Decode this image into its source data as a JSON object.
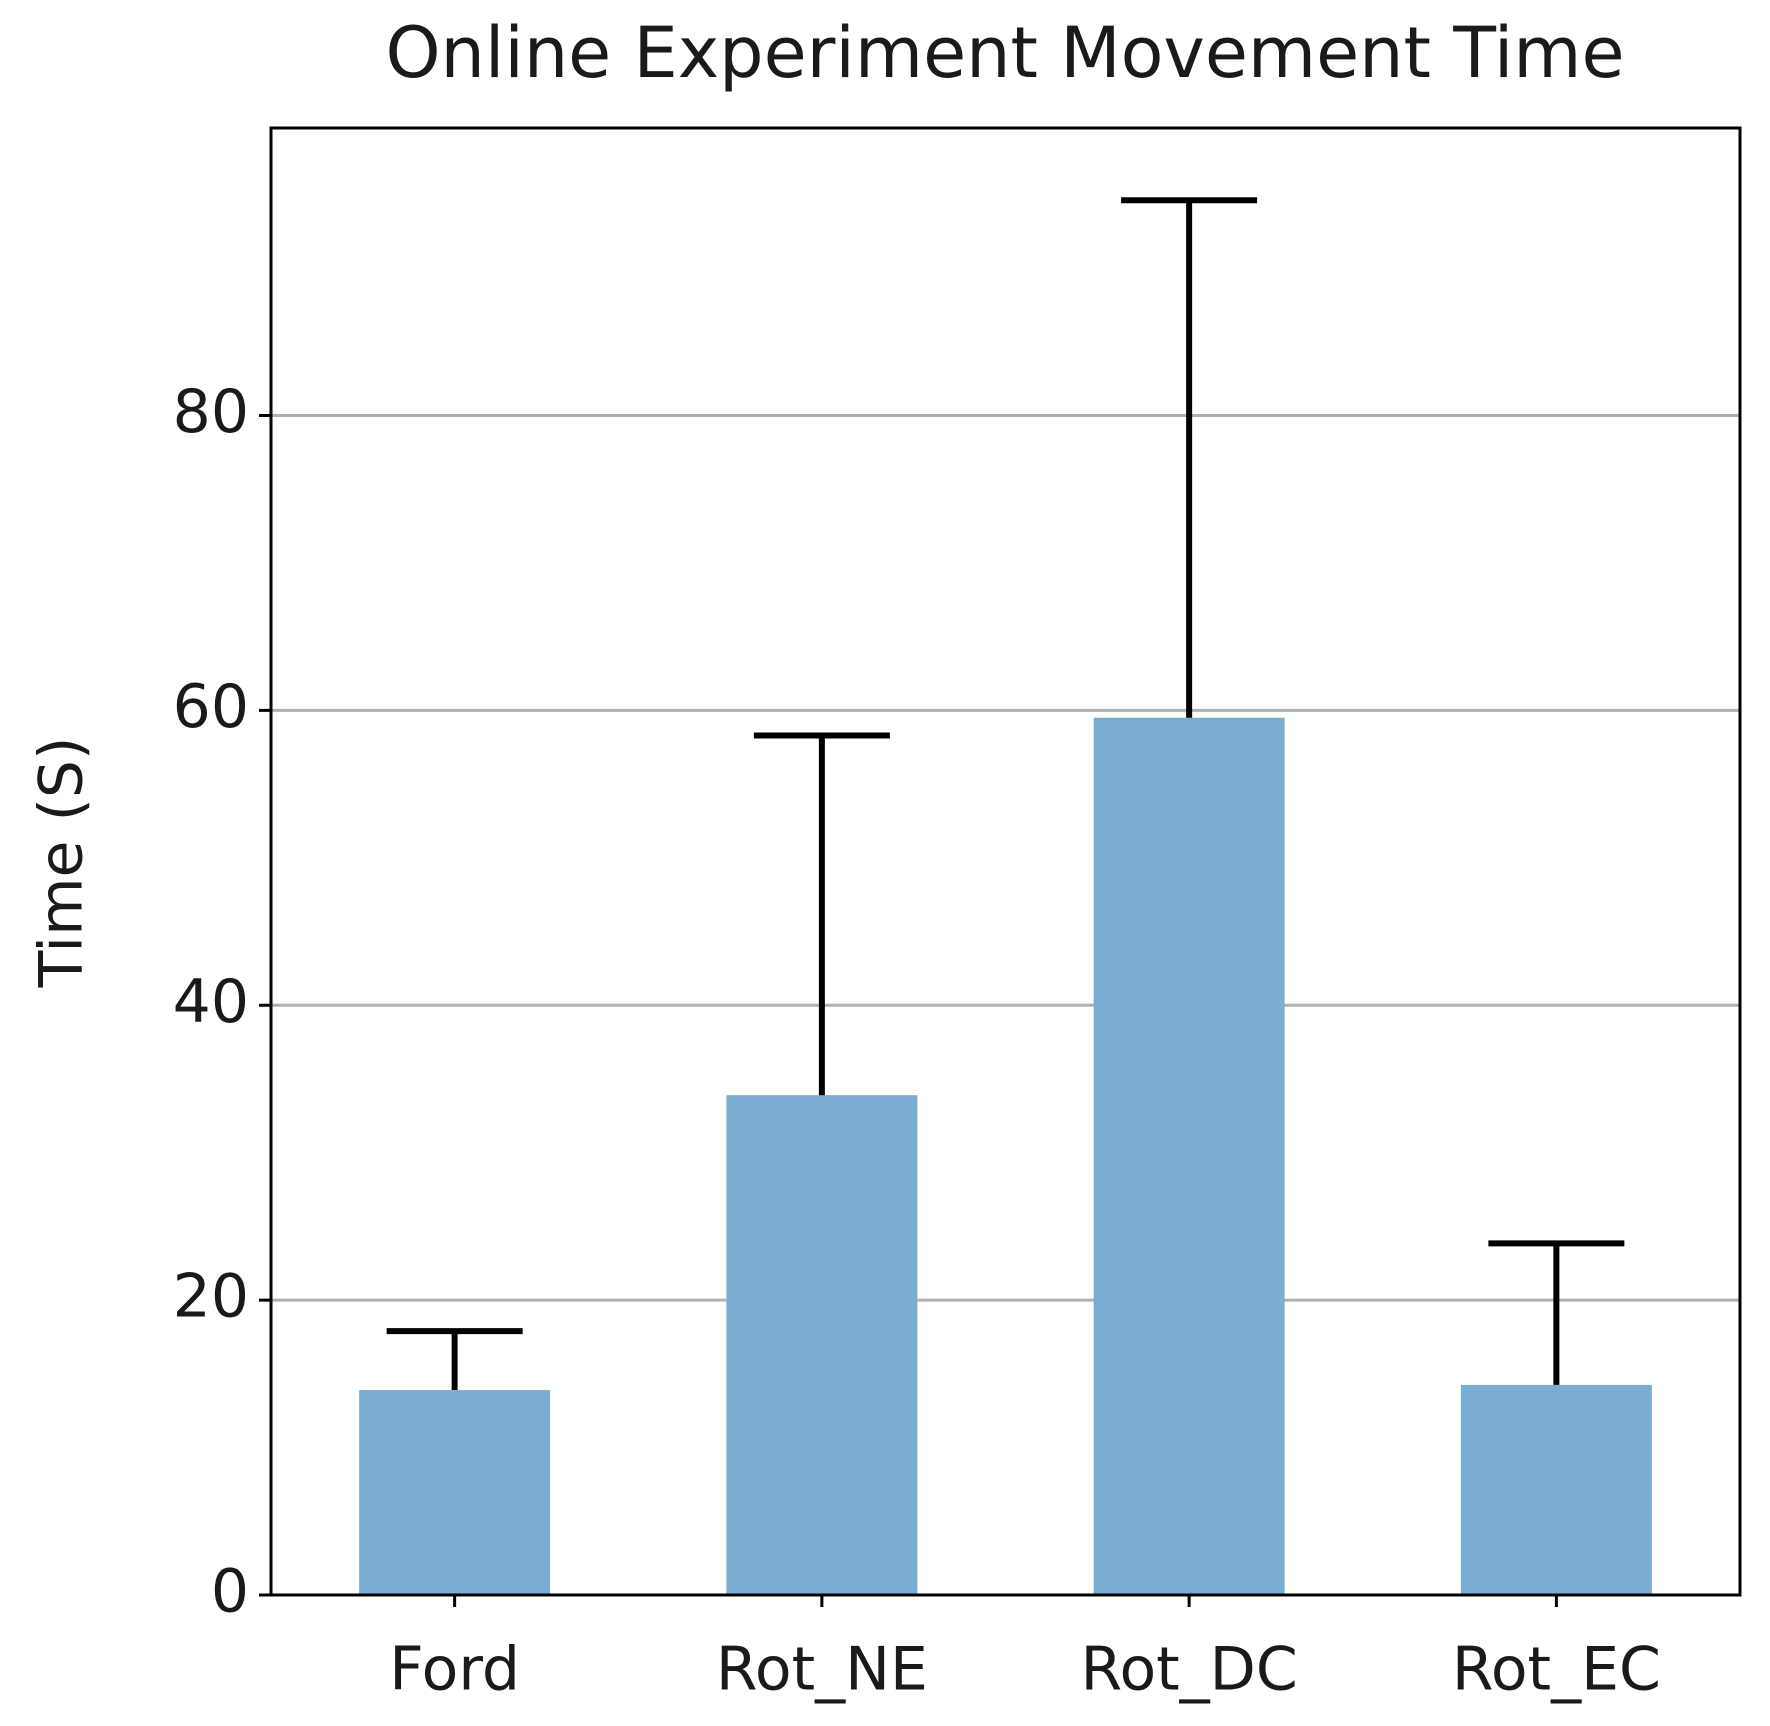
{
  "chart_data": {
    "type": "bar",
    "title": "Online Experiment Movement Time",
    "y_label": "Time (S)",
    "categories": [
      "Ford",
      "Rot_NE",
      "Rot_DC",
      "Rot_EC"
    ],
    "values": [
      13.9,
      33.9,
      59.5,
      14.25
    ],
    "errors": [
      4.0,
      24.4,
      35.1,
      9.6
    ],
    "color": "#7aadd1",
    "error_color": "#000000",
    "ylim": [
      0,
      99.5
    ],
    "yticks": [
      0,
      20,
      40,
      60,
      80
    ],
    "grid": true
  }
}
